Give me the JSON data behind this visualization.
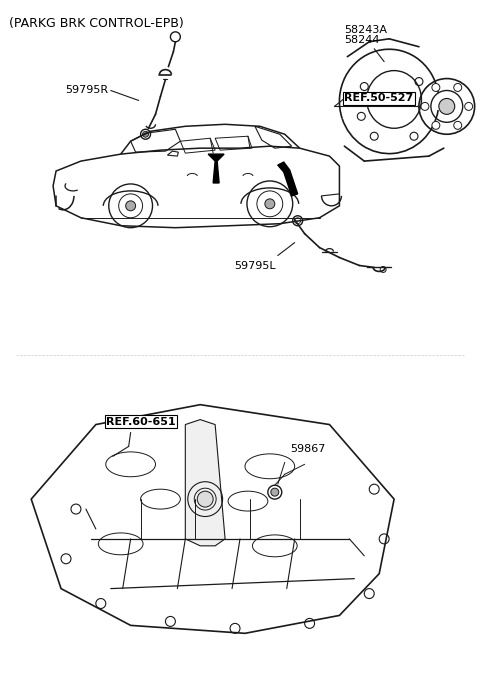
{
  "title": "(PARKG BRK CONTROL-EPB)",
  "bg_color": "#ffffff",
  "line_color": "#1a1a1a",
  "text_color": "#000000",
  "labels": {
    "top_left": "59795R",
    "top_right_1": "58243A",
    "top_right_2": "58244",
    "ref_right": "REF.50-527",
    "mid_label": "59795L",
    "ref_bottom": "REF.60-651",
    "bottom_label": "59867"
  },
  "figsize": [
    4.8,
    6.95
  ],
  "dpi": 100
}
